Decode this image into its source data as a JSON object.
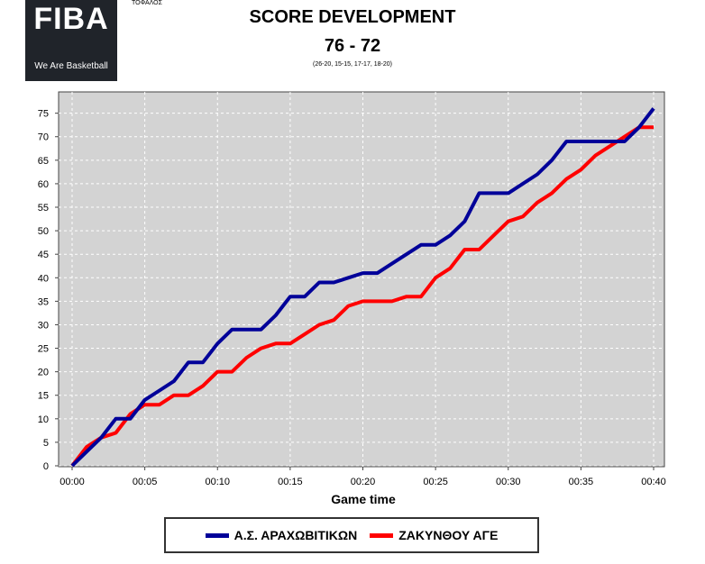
{
  "logo": {
    "word": "FIBA",
    "tagline": "We Are Basketball"
  },
  "top_note": "ΤΟΦΑΛΟΣ",
  "colors": {
    "team_a": "#000099",
    "team_b": "#ff0000",
    "plot_bg": "#d3d3d3"
  },
  "chart_data": {
    "type": "line",
    "title": "SCORE DEVELOPMENT",
    "subtitle": "76 - 72",
    "period_scores": "(26-20, 15-15, 17-17, 18-20)",
    "xlabel": "Game time",
    "ylabel": "",
    "xlim": [
      0,
      40
    ],
    "ylim": [
      0,
      78
    ],
    "x_ticks": [
      0,
      5,
      10,
      15,
      20,
      25,
      30,
      35,
      40
    ],
    "x_tick_labels": [
      "00:00",
      "00:05",
      "00:10",
      "00:15",
      "00:20",
      "00:25",
      "00:30",
      "00:35",
      "00:40"
    ],
    "y_ticks": [
      0,
      5,
      10,
      15,
      20,
      25,
      30,
      35,
      40,
      45,
      50,
      55,
      60,
      65,
      70,
      75
    ],
    "grid": true,
    "legend": "bottom",
    "series": [
      {
        "name": "Α.Σ. ΑΡΑΧΩΒΙΤΙΚΩΝ",
        "color": "#000099",
        "points": [
          [
            0,
            0
          ],
          [
            1,
            3
          ],
          [
            2,
            6
          ],
          [
            3,
            10
          ],
          [
            4,
            10
          ],
          [
            5,
            14
          ],
          [
            6,
            16
          ],
          [
            7,
            18
          ],
          [
            8,
            22
          ],
          [
            9,
            22
          ],
          [
            10,
            26
          ],
          [
            11,
            29
          ],
          [
            12,
            29
          ],
          [
            13,
            29
          ],
          [
            14,
            32
          ],
          [
            15,
            36
          ],
          [
            16,
            36
          ],
          [
            17,
            39
          ],
          [
            18,
            39
          ],
          [
            19,
            40
          ],
          [
            20,
            41
          ],
          [
            21,
            41
          ],
          [
            22,
            43
          ],
          [
            23,
            45
          ],
          [
            24,
            47
          ],
          [
            25,
            47
          ],
          [
            26,
            49
          ],
          [
            27,
            52
          ],
          [
            28,
            58
          ],
          [
            29,
            58
          ],
          [
            30,
            58
          ],
          [
            31,
            60
          ],
          [
            32,
            62
          ],
          [
            33,
            65
          ],
          [
            34,
            69
          ],
          [
            35,
            69
          ],
          [
            36,
            69
          ],
          [
            37,
            69
          ],
          [
            38,
            69
          ],
          [
            39,
            72
          ],
          [
            40,
            76
          ]
        ]
      },
      {
        "name": "ΖΑΚΥΝΘΟΥ ΑΓΕ",
        "color": "#ff0000",
        "points": [
          [
            0,
            0
          ],
          [
            1,
            4
          ],
          [
            2,
            6
          ],
          [
            3,
            7
          ],
          [
            4,
            11
          ],
          [
            5,
            13
          ],
          [
            6,
            13
          ],
          [
            7,
            15
          ],
          [
            8,
            15
          ],
          [
            9,
            17
          ],
          [
            10,
            20
          ],
          [
            11,
            20
          ],
          [
            12,
            23
          ],
          [
            13,
            25
          ],
          [
            14,
            26
          ],
          [
            15,
            26
          ],
          [
            16,
            28
          ],
          [
            17,
            30
          ],
          [
            18,
            31
          ],
          [
            19,
            34
          ],
          [
            20,
            35
          ],
          [
            21,
            35
          ],
          [
            22,
            35
          ],
          [
            23,
            36
          ],
          [
            24,
            36
          ],
          [
            25,
            40
          ],
          [
            26,
            42
          ],
          [
            27,
            46
          ],
          [
            28,
            46
          ],
          [
            29,
            49
          ],
          [
            30,
            52
          ],
          [
            31,
            53
          ],
          [
            32,
            56
          ],
          [
            33,
            58
          ],
          [
            34,
            61
          ],
          [
            35,
            63
          ],
          [
            36,
            66
          ],
          [
            37,
            68
          ],
          [
            38,
            70
          ],
          [
            39,
            72
          ],
          [
            40,
            72
          ]
        ]
      }
    ]
  }
}
